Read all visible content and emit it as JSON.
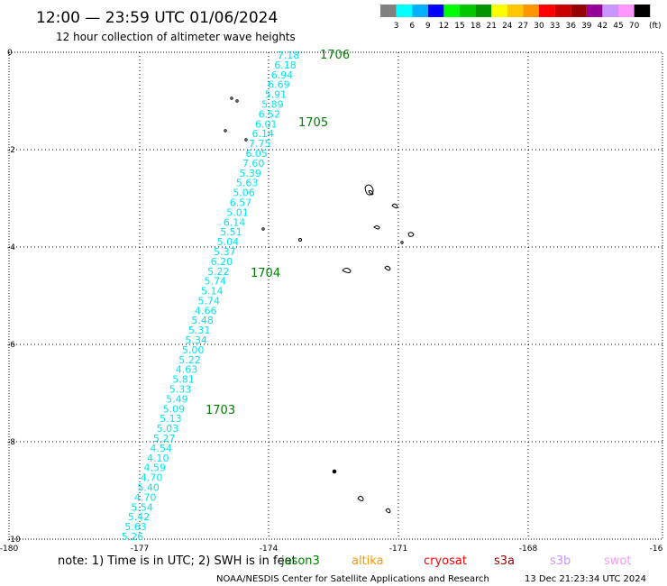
{
  "title": "12:00 — 23:59 UTC 01/06/2024",
  "subtitle": "12 hour collection of altimeter wave heights",
  "legend": {
    "colors": [
      "#808080",
      "#00ffff",
      "#00b0ff",
      "#0000ff",
      "#00ff00",
      "#00c800",
      "#009600",
      "#ffff00",
      "#ffc800",
      "#ff9600",
      "#ff0000",
      "#c80000",
      "#960000",
      "#960096",
      "#c896ff",
      "#ff96ff",
      "#000000"
    ],
    "labels": [
      "3",
      "6",
      "9",
      "12",
      "15",
      "18",
      "21",
      "24",
      "27",
      "30",
      "33",
      "36",
      "39",
      "42",
      "45",
      "70"
    ],
    "unit": "(ft)"
  },
  "axes": {
    "x_ticks": [
      "-180",
      "-177",
      "-174",
      "-171",
      "-168",
      "-16"
    ],
    "y_ticks": [
      "0",
      "-2",
      "-4",
      "-6",
      "-8",
      "-10"
    ]
  },
  "track": {
    "color": "#00e5ee",
    "values": [
      "7.18",
      "6.18",
      "6.94",
      "6.69",
      "5.91",
      "5.89",
      "6.52",
      "6.01",
      "6.14",
      "7.75",
      "6.05",
      "7.60",
      "5.39",
      "5.63",
      "5.06",
      "6.57",
      "5.01",
      "6.14",
      "5.51",
      "5.04",
      "5.37",
      "6.20",
      "5.22",
      "5.74",
      "5.14",
      "5.74",
      "4.66",
      "5.48",
      "5.31",
      "5.34",
      "5.00",
      "5.22",
      "4.63",
      "5.81",
      "5.33",
      "5.49",
      "5.09",
      "5.13",
      "5.03",
      "5.27",
      "4.54",
      "4.10",
      "4.59",
      "4.70",
      "5.40",
      "4.70",
      "5.54",
      "5.42",
      "5.63",
      "5.26"
    ]
  },
  "time_labels": {
    "color": "#008000",
    "items": [
      "1706",
      "1705",
      "1704",
      "1703"
    ]
  },
  "footer": {
    "note": "note:  1) Time is in UTC;  2) SWH is in feet",
    "missions": [
      {
        "name": "jason3",
        "color": "#008000"
      },
      {
        "name": "altika",
        "color": "#ff9600"
      },
      {
        "name": "cryosat",
        "color": "#ff0000"
      },
      {
        "name": "s3a",
        "color": "#960000"
      },
      {
        "name": "s3b",
        "color": "#c896ff"
      },
      {
        "name": "swot",
        "color": "#ff96ff"
      }
    ],
    "credit": "NOAA/NESDIS Center for Satellite Applications and Research",
    "timestamp": "13 Dec 21:23:34 UTC 2024"
  }
}
